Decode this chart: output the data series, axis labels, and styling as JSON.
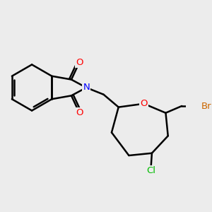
{
  "bg_color": "#ececec",
  "bond_color": "#000000",
  "bond_width": 1.8,
  "atom_colors": {
    "O": "#ff0000",
    "N": "#0000ff",
    "Cl": "#00bb00",
    "Br": "#cc6600",
    "C": "#000000"
  },
  "font_size": 9.5,
  "figsize": [
    3.0,
    3.0
  ],
  "dpi": 100
}
